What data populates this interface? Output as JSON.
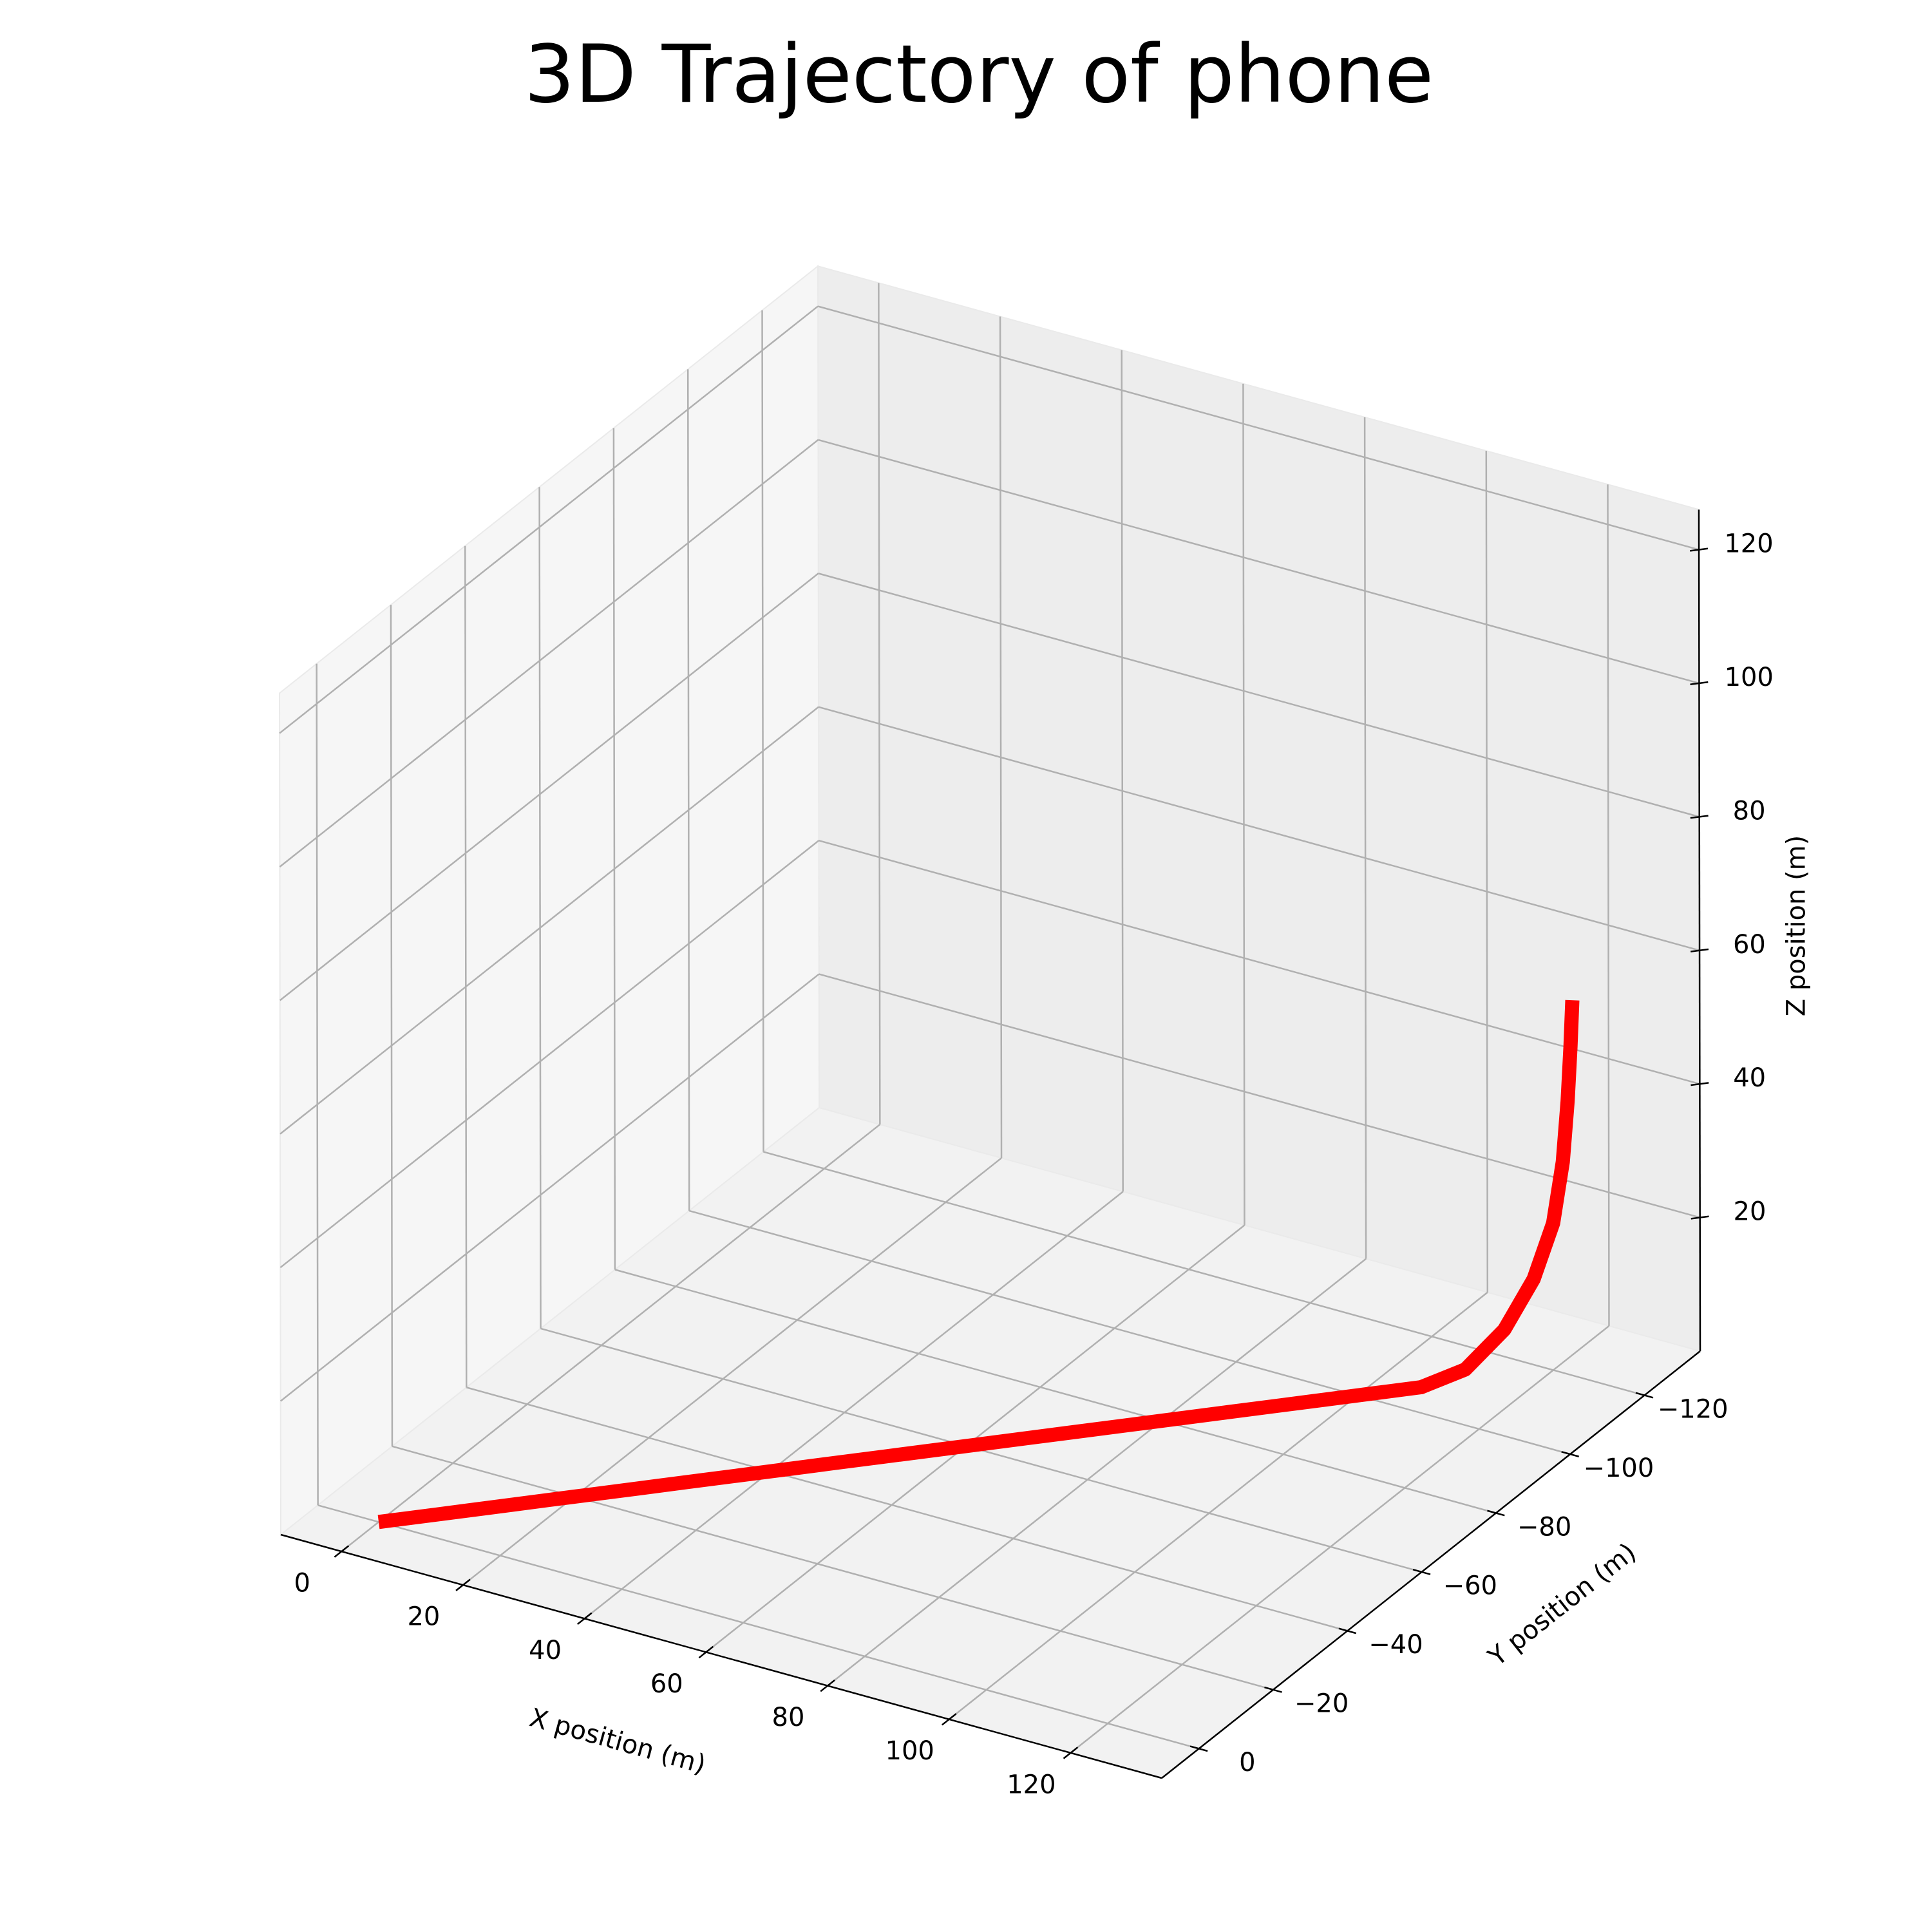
{
  "chart_data": {
    "type": "line",
    "projection": "3d",
    "title": "3D Trajectory of phone",
    "xlabel": "X position (m)",
    "ylabel": "Y position (m)",
    "zlabel": "Z position (m)",
    "xlim": [
      -10,
      135
    ],
    "ylim": [
      -135,
      10
    ],
    "zlim": [
      0,
      126
    ],
    "x_ticks": [
      0,
      20,
      40,
      60,
      80,
      100,
      120
    ],
    "y_ticks": [
      0,
      -20,
      -40,
      -60,
      -80,
      -100,
      -120
    ],
    "z_ticks": [
      20,
      40,
      60,
      80,
      100,
      120
    ],
    "x_tick_labels": [
      "0",
      "20",
      "40",
      "60",
      "80",
      "100",
      "120"
    ],
    "y_tick_labels": [
      "0",
      "−20",
      "−40",
      "−60",
      "−80",
      "−100",
      "−120"
    ],
    "z_tick_labels": [
      "20",
      "40",
      "60",
      "80",
      "100",
      "120"
    ],
    "grid": true,
    "series": [
      {
        "color": "#ff0000",
        "x": [
          0.0,
          1.5,
          3.5,
          6.0,
          9.0,
          13.0,
          17.5,
          22.0,
          26.5,
          31.5,
          36.5,
          41.5,
          46.5,
          51.5,
          56.5,
          61.5,
          66.5,
          71.5,
          76.5,
          81.5,
          86.5,
          91.5,
          96.5,
          101.5,
          106.5,
          111.0,
          115.0,
          118.0,
          120.0,
          121.0,
          121.5,
          121.8,
          122.0
        ],
        "y": [
          0.0,
          -1.5,
          -3.5,
          -6.0,
          -9.0,
          -13.0,
          -17.5,
          -22.0,
          -26.5,
          -31.5,
          -36.5,
          -41.5,
          -46.5,
          -51.5,
          -56.5,
          -61.5,
          -66.5,
          -71.5,
          -76.5,
          -81.5,
          -86.5,
          -91.5,
          -96.5,
          -101.5,
          -106.5,
          -111.0,
          -115.0,
          -118.0,
          -120.0,
          -121.0,
          -121.5,
          -121.8,
          -122.0
        ],
        "z": [
          0,
          0,
          0,
          0,
          0,
          0,
          0,
          0,
          0,
          0,
          0,
          0,
          0,
          0,
          0,
          0,
          0,
          0,
          0,
          0,
          0,
          0,
          0,
          0,
          0,
          1.8,
          7.0,
          14.0,
          22.0,
          31.0,
          40.0,
          48.0,
          55.0
        ]
      }
    ]
  }
}
